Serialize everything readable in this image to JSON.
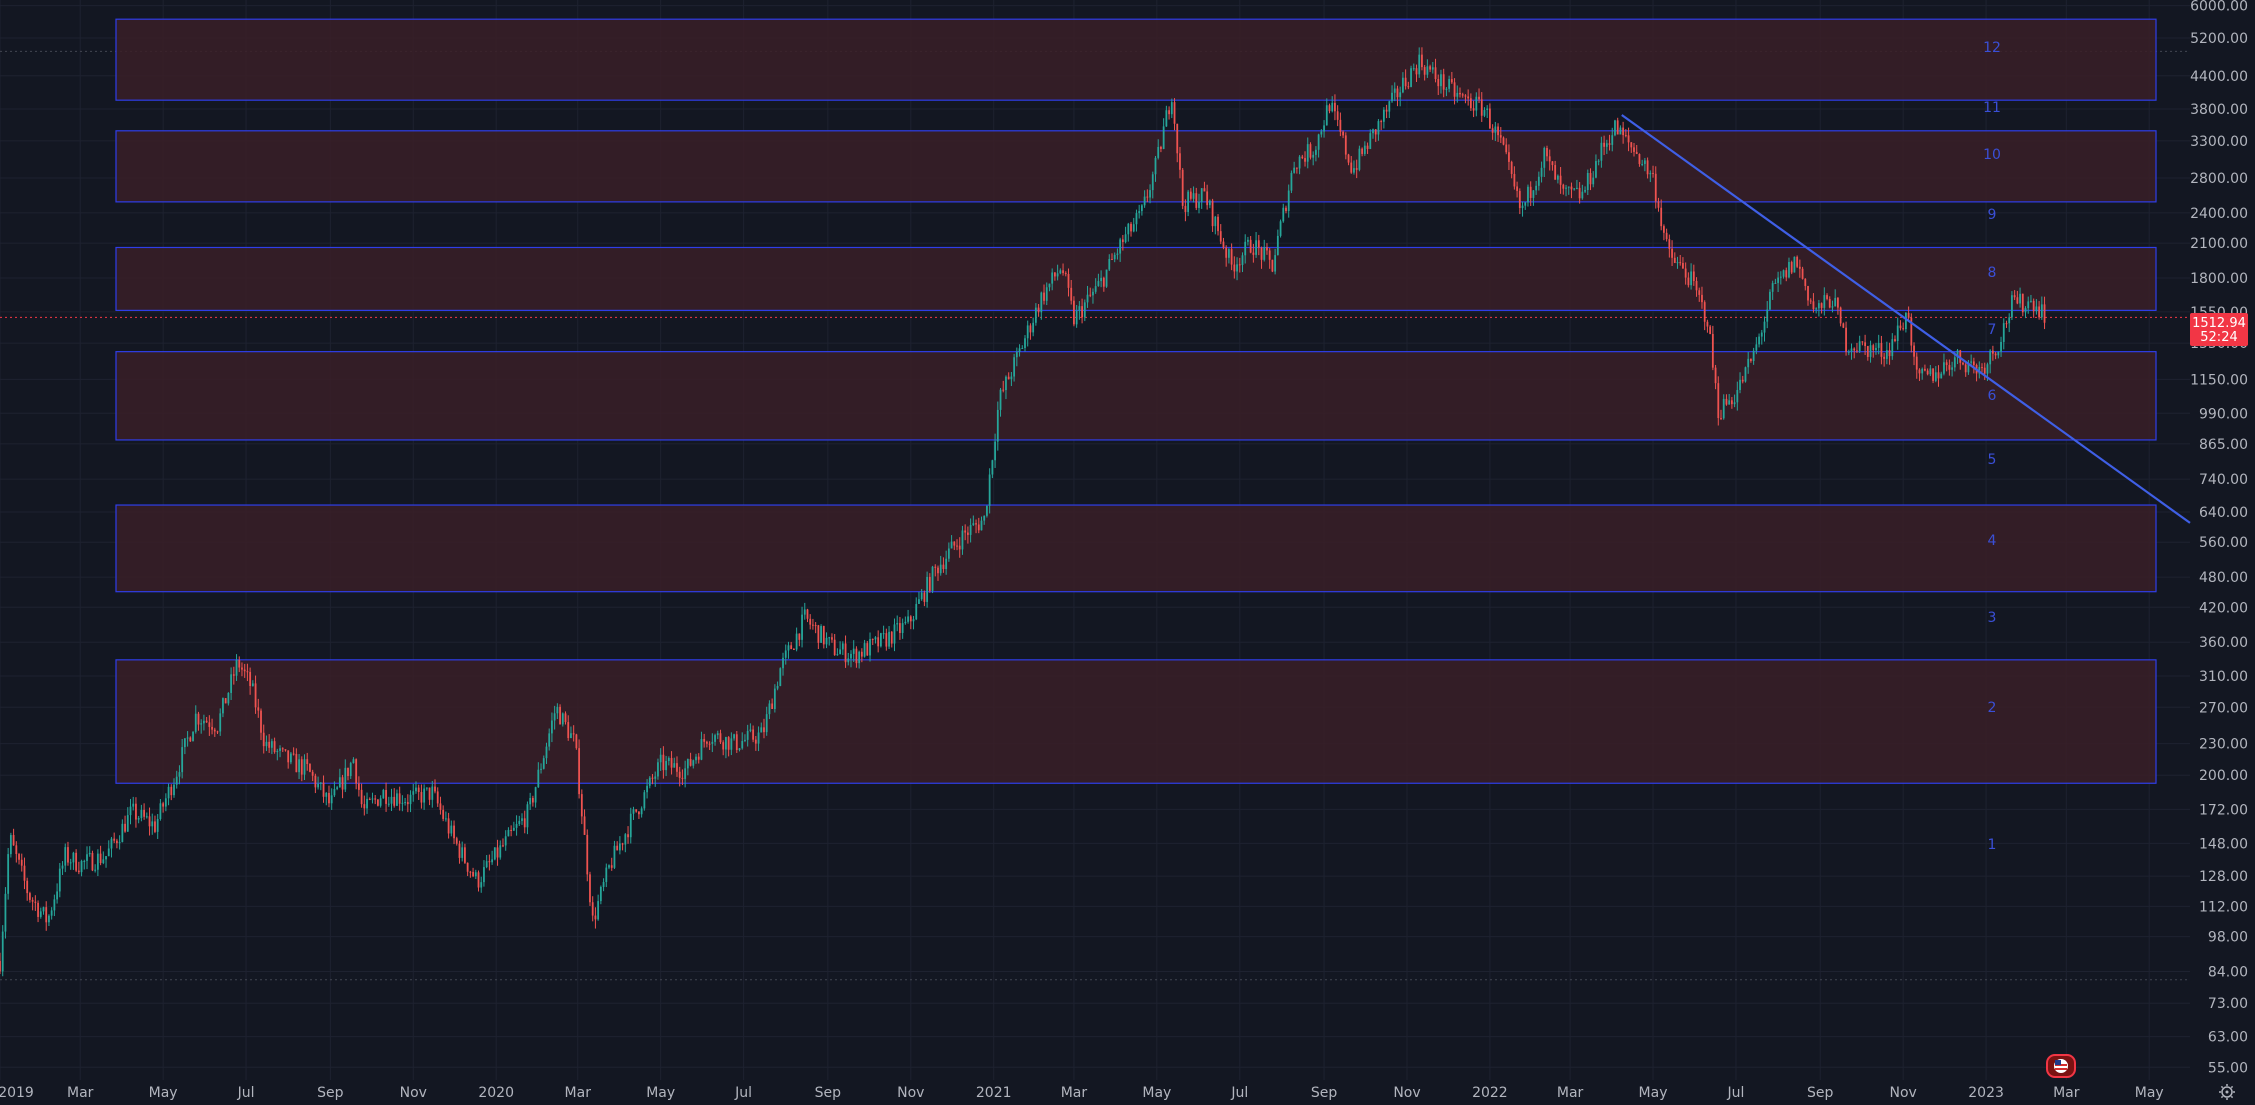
{
  "chart_data": {
    "type": "candlestick",
    "scale": "log",
    "title": "",
    "xlabel": "",
    "ylabel": "",
    "ylim": [
      52,
      6150
    ],
    "xlim": [
      "2019-01-01",
      "2023-05-31"
    ],
    "grid": true,
    "y_ticks": [
      6000,
      5200,
      4400,
      3800,
      3300,
      2800,
      2400,
      2100,
      1800,
      1550,
      1350,
      1150,
      990,
      865,
      740,
      640,
      560,
      480,
      420,
      360,
      310,
      270,
      230,
      200,
      172,
      148,
      128,
      112,
      98,
      84,
      73,
      63,
      55
    ],
    "x_ticks": [
      {
        "label": "2019",
        "date": "2019-01-01"
      },
      {
        "label": "Mar",
        "date": "2019-03-01"
      },
      {
        "label": "May",
        "date": "2019-05-01"
      },
      {
        "label": "Jul",
        "date": "2019-07-01"
      },
      {
        "label": "Sep",
        "date": "2019-09-01"
      },
      {
        "label": "Nov",
        "date": "2019-11-01"
      },
      {
        "label": "2020",
        "date": "2020-01-01"
      },
      {
        "label": "Mar",
        "date": "2020-03-01"
      },
      {
        "label": "May",
        "date": "2020-05-01"
      },
      {
        "label": "Jul",
        "date": "2020-07-01"
      },
      {
        "label": "Sep",
        "date": "2020-09-01"
      },
      {
        "label": "Nov",
        "date": "2020-11-01"
      },
      {
        "label": "2021",
        "date": "2021-01-01"
      },
      {
        "label": "Mar",
        "date": "2021-03-01"
      },
      {
        "label": "May",
        "date": "2021-05-01"
      },
      {
        "label": "Jul",
        "date": "2021-07-01"
      },
      {
        "label": "Sep",
        "date": "2021-09-01"
      },
      {
        "label": "Nov",
        "date": "2021-11-01"
      },
      {
        "label": "2022",
        "date": "2022-01-01"
      },
      {
        "label": "Mar",
        "date": "2022-03-01"
      },
      {
        "label": "May",
        "date": "2022-05-01"
      },
      {
        "label": "Jul",
        "date": "2022-07-01"
      },
      {
        "label": "Sep",
        "date": "2022-09-01"
      },
      {
        "label": "Nov",
        "date": "2022-11-01"
      },
      {
        "label": "2023",
        "date": "2023-01-01"
      },
      {
        "label": "Mar",
        "date": "2023-03-01"
      },
      {
        "label": "May",
        "date": "2023-05-01"
      }
    ],
    "price_path": [
      [
        "2019-01-01",
        88
      ],
      [
        "2019-01-08",
        152
      ],
      [
        "2019-01-22",
        118
      ],
      [
        "2019-02-05",
        105
      ],
      [
        "2019-02-18",
        140
      ],
      [
        "2019-03-01",
        135
      ],
      [
        "2019-03-20",
        140
      ],
      [
        "2019-04-08",
        170
      ],
      [
        "2019-04-25",
        160
      ],
      [
        "2019-05-10",
        200
      ],
      [
        "2019-05-25",
        260
      ],
      [
        "2019-06-10",
        250
      ],
      [
        "2019-06-25",
        330
      ],
      [
        "2019-07-05",
        295
      ],
      [
        "2019-07-15",
        230
      ],
      [
        "2019-07-30",
        215
      ],
      [
        "2019-08-15",
        205
      ],
      [
        "2019-09-01",
        175
      ],
      [
        "2019-09-18",
        215
      ],
      [
        "2019-09-25",
        170
      ],
      [
        "2019-10-10",
        185
      ],
      [
        "2019-10-28",
        180
      ],
      [
        "2019-11-15",
        185
      ],
      [
        "2019-12-01",
        150
      ],
      [
        "2019-12-18",
        125
      ],
      [
        "2020-01-05",
        145
      ],
      [
        "2020-01-25",
        170
      ],
      [
        "2020-02-14",
        270
      ],
      [
        "2020-02-28",
        230
      ],
      [
        "2020-03-12",
        105
      ],
      [
        "2020-03-25",
        135
      ],
      [
        "2020-04-10",
        165
      ],
      [
        "2020-05-01",
        210
      ],
      [
        "2020-05-20",
        205
      ],
      [
        "2020-06-05",
        240
      ],
      [
        "2020-06-25",
        230
      ],
      [
        "2020-07-15",
        240
      ],
      [
        "2020-07-28",
        320
      ],
      [
        "2020-08-15",
        400
      ],
      [
        "2020-09-05",
        350
      ],
      [
        "2020-09-20",
        340
      ],
      [
        "2020-10-10",
        360
      ],
      [
        "2020-10-30",
        390
      ],
      [
        "2020-11-20",
        500
      ],
      [
        "2020-12-10",
        580
      ],
      [
        "2020-12-25",
        620
      ],
      [
        "2021-01-05",
        1050
      ],
      [
        "2021-01-20",
        1300
      ],
      [
        "2021-02-05",
        1650
      ],
      [
        "2021-02-20",
        1900
      ],
      [
        "2021-03-01",
        1500
      ],
      [
        "2021-03-20",
        1750
      ],
      [
        "2021-04-05",
        2100
      ],
      [
        "2021-04-20",
        2400
      ],
      [
        "2021-05-01",
        3000
      ],
      [
        "2021-05-12",
        4100
      ],
      [
        "2021-05-20",
        2500
      ],
      [
        "2021-06-05",
        2600
      ],
      [
        "2021-06-25",
        1900
      ],
      [
        "2021-07-10",
        2100
      ],
      [
        "2021-07-25",
        1900
      ],
      [
        "2021-08-10",
        3000
      ],
      [
        "2021-08-25",
        3200
      ],
      [
        "2021-09-05",
        3900
      ],
      [
        "2021-09-22",
        2900
      ],
      [
        "2021-10-10",
        3500
      ],
      [
        "2021-10-28",
        4200
      ],
      [
        "2021-11-10",
        4700
      ],
      [
        "2021-11-25",
        4300
      ],
      [
        "2021-12-10",
        4000
      ],
      [
        "2021-12-28",
        3800
      ],
      [
        "2022-01-10",
        3200
      ],
      [
        "2022-01-24",
        2400
      ],
      [
        "2022-02-10",
        3100
      ],
      [
        "2022-02-24",
        2600
      ],
      [
        "2022-03-10",
        2600
      ],
      [
        "2022-03-25",
        3200
      ],
      [
        "2022-04-03",
        3500
      ],
      [
        "2022-04-20",
        3100
      ],
      [
        "2022-05-01",
        2800
      ],
      [
        "2022-05-12",
        2000
      ],
      [
        "2022-05-28",
        1800
      ],
      [
        "2022-06-10",
        1500
      ],
      [
        "2022-06-18",
        1000
      ],
      [
        "2022-07-01",
        1080
      ],
      [
        "2022-07-15",
        1300
      ],
      [
        "2022-07-28",
        1700
      ],
      [
        "2022-08-14",
        1950
      ],
      [
        "2022-08-28",
        1550
      ],
      [
        "2022-09-10",
        1650
      ],
      [
        "2022-09-20",
        1350
      ],
      [
        "2022-10-05",
        1320
      ],
      [
        "2022-10-20",
        1300
      ],
      [
        "2022-11-05",
        1550
      ],
      [
        "2022-11-10",
        1150
      ],
      [
        "2022-11-25",
        1180
      ],
      [
        "2022-12-10",
        1270
      ],
      [
        "2022-12-28",
        1200
      ],
      [
        "2023-01-10",
        1350
      ],
      [
        "2023-01-20",
        1600
      ],
      [
        "2023-02-05",
        1620
      ],
      [
        "2023-02-14",
        1530
      ]
    ],
    "zones": [
      {
        "label": "12",
        "low": 3950,
        "high": 5650
      },
      {
        "label": "11",
        "low": 3950,
        "high": 3950
      },
      {
        "label": "10",
        "low": 2520,
        "high": 3450
      },
      {
        "label": "9",
        "low": 2520,
        "high": 2520
      },
      {
        "label": "8",
        "low": 1560,
        "high": 2060
      },
      {
        "label": "7",
        "low": 1560,
        "high": 1560
      },
      {
        "label": "6",
        "low": 880,
        "high": 1300
      },
      {
        "label": "5",
        "low": 880,
        "high": 880
      },
      {
        "label": "4",
        "low": 450,
        "high": 660
      },
      {
        "label": "3",
        "low": 450,
        "high": 450
      },
      {
        "label": "2",
        "low": 193,
        "high": 333
      },
      {
        "label": "1",
        "low": 193,
        "high": 193
      }
    ],
    "trendline": {
      "start": [
        "2022-04-08",
        3700
      ],
      "end": [
        "2023-05-31",
        610
      ]
    },
    "last_price": {
      "value": "1512.94",
      "countdown": "52:24",
      "price": 1512.94
    },
    "reference_lines": [
      4900,
      81
    ],
    "colors": {
      "background": "#131722",
      "grid": "#1e2230",
      "up": "#26a69a",
      "down": "#ef5350",
      "zone_fill": "#3a1f27",
      "zone_border": "#2f3ee8",
      "trendline": "#3f5fe6",
      "label": "#3a4fd6",
      "axis_text": "#b2b5be",
      "price_tag": "#f23645"
    }
  },
  "toolbar": {
    "flag_icon": "us-flag-icon",
    "settings_icon": "gear-icon"
  }
}
